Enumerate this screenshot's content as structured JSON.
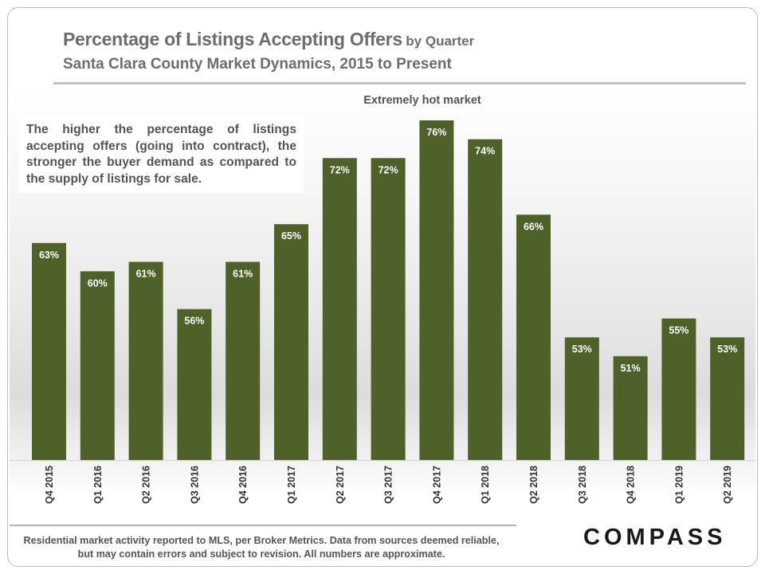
{
  "header": {
    "title": "Percentage of Listings Accepting Offers",
    "title_suffix": "by Quarter",
    "subtitle": "Santa Clara County Market Dynamics, 2015 to Present"
  },
  "annotation": {
    "text": "The higher the percentage of listings accepting offers (going into contract), the stronger the buyer demand as compared to the supply of listings for sale.",
    "hot_market_label": "Extremely hot market"
  },
  "footer": {
    "disclaimer": "Residential market activity reported to MLS, per Broker Metrics. Data from sources deemed reliable, but may contain errors and subject to revision. All numbers are approximate.",
    "logo": "COMPASS"
  },
  "colors": {
    "bar": "#4e6128",
    "bar_label": "#ffffff",
    "text": "#6d6d6d"
  },
  "chart_data": {
    "type": "bar",
    "title": "Percentage of Listings Accepting Offers by Quarter",
    "subtitle": "Santa Clara County Market Dynamics, 2015 to Present",
    "categories": [
      "Q4 2015",
      "Q1 2016",
      "Q2 2016",
      "Q3 2016",
      "Q4 2016",
      "Q1 2017",
      "Q2 2017",
      "Q3 2017",
      "Q4 2017",
      "Q1 2018",
      "Q2 2018",
      "Q3 2018",
      "Q4 2018",
      "Q1 2019",
      "Q2 2019"
    ],
    "values": [
      63,
      60,
      61,
      56,
      61,
      65,
      72,
      72,
      76,
      74,
      66,
      53,
      51,
      55,
      53
    ],
    "value_labels": [
      "63%",
      "60%",
      "61%",
      "56%",
      "61%",
      "65%",
      "72%",
      "72%",
      "76%",
      "74%",
      "66%",
      "53%",
      "51%",
      "55%",
      "53%"
    ],
    "unit": "%",
    "ylim": [
      40,
      76
    ],
    "grid": false,
    "legend": "none"
  }
}
